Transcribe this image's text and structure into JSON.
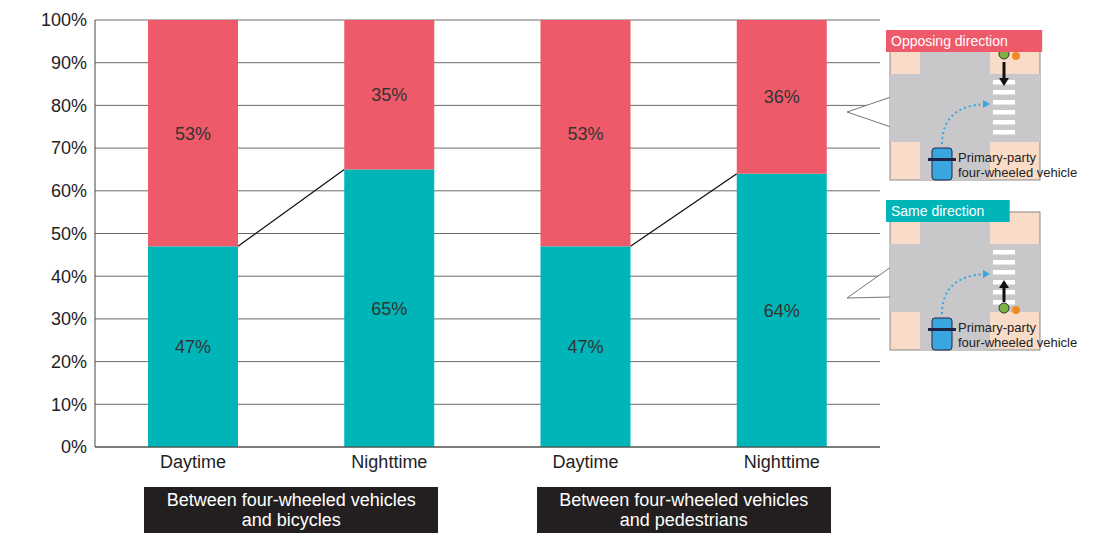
{
  "chart_data": {
    "type": "bar",
    "stacked": true,
    "data_labels": true,
    "grid": true,
    "legend": "right",
    "categories": [
      "Daytime",
      "Nighttime",
      "Daytime",
      "Nighttime"
    ],
    "group_labels": [
      "Between four-wheeled vehicles and bicycles",
      "Between four-wheeled vehicles and pedestrians"
    ],
    "series": [
      {
        "name": "Same direction",
        "color": "#00b5b8",
        "values": [
          47,
          65,
          47,
          64
        ],
        "value_labels": [
          "47%",
          "65%",
          "47%",
          "64%"
        ],
        "note": "Primary-party four-wheeled vehicle"
      },
      {
        "name": "Opposing direction",
        "color": "#ef5a6a",
        "values": [
          53,
          35,
          53,
          36
        ],
        "value_labels": [
          "53%",
          "35%",
          "53%",
          "36%"
        ],
        "note": "Primary-party four-wheeled vehicle"
      }
    ],
    "ylim": [
      0,
      100
    ],
    "yticks": [
      {
        "value": 0,
        "label": "0%"
      },
      {
        "value": 10,
        "label": "10%"
      },
      {
        "value": 20,
        "label": "20%"
      },
      {
        "value": 30,
        "label": "30%"
      },
      {
        "value": 40,
        "label": "40%"
      },
      {
        "value": 50,
        "label": "50%"
      },
      {
        "value": 60,
        "label": "60%"
      },
      {
        "value": 70,
        "label": "70%"
      },
      {
        "value": 80,
        "label": "80%"
      },
      {
        "value": 90,
        "label": "90%"
      },
      {
        "value": 100,
        "label": "100%"
      }
    ]
  }
}
